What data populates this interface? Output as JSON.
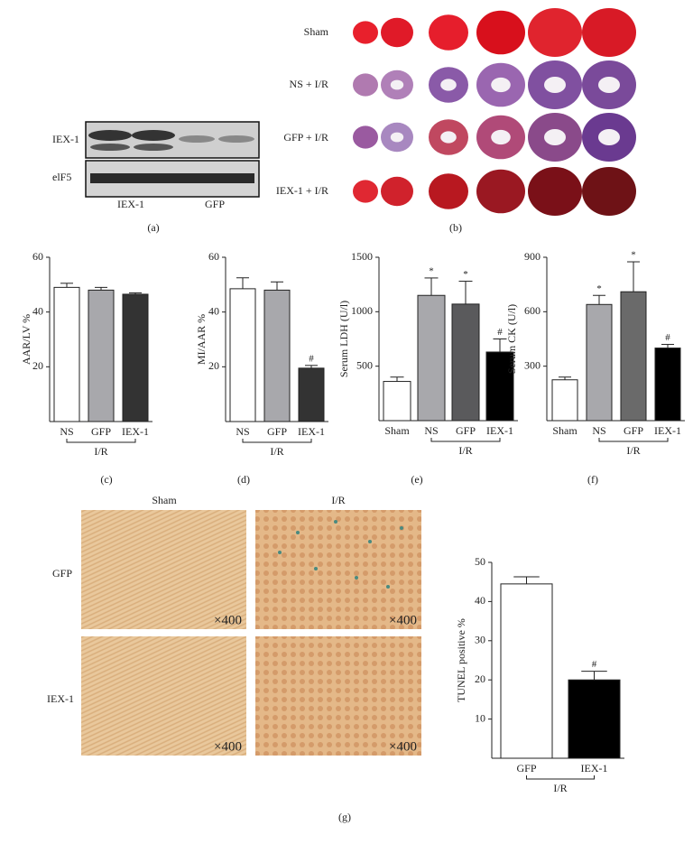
{
  "figure": {
    "blot": {
      "row_labels": [
        "IEX-1",
        "elF5"
      ],
      "lane_labels": [
        "IEX-1",
        "GFP"
      ],
      "panel_label": "(a)"
    },
    "hearts": {
      "row_labels": [
        "Sham",
        "NS + I/R",
        "GFP + I/R",
        "IEX-1 + I/R"
      ],
      "panel_label": "(b)"
    },
    "tunel": {
      "column_labels": [
        "Sham",
        "I/R"
      ],
      "row_labels": [
        "GFP",
        "IEX-1"
      ],
      "magnification": "×400",
      "panel_label": "(g)"
    }
  },
  "chart_data": [
    {
      "type": "bar",
      "ylabel": "AAR/LV %",
      "panel_label": "(c)",
      "categories": [
        "NS",
        "GFP",
        "IEX-1"
      ],
      "category_groups": [
        "I/R",
        "I/R",
        "I/R"
      ],
      "values": [
        49,
        48,
        46.5
      ],
      "errors": [
        1.5,
        1,
        0.5
      ],
      "colors": [
        "#ffffff",
        "#a8a8ac",
        "#333333"
      ],
      "annotations": [
        null,
        null,
        null
      ],
      "ylim": [
        0,
        60
      ],
      "yticks": [
        20,
        40,
        60
      ]
    },
    {
      "type": "bar",
      "ylabel": "MI/AAR %",
      "panel_label": "(d)",
      "categories": [
        "NS",
        "GFP",
        "IEX-1"
      ],
      "category_groups": [
        "I/R",
        "I/R",
        "I/R"
      ],
      "values": [
        48.5,
        48,
        19.5
      ],
      "errors": [
        4,
        3,
        1
      ],
      "colors": [
        "#ffffff",
        "#a8a8ac",
        "#333333"
      ],
      "annotations": [
        null,
        null,
        "#"
      ],
      "ylim": [
        0,
        60
      ],
      "yticks": [
        20,
        40,
        60
      ]
    },
    {
      "type": "bar",
      "ylabel": "Serum LDH (U/l)",
      "panel_label": "(e)",
      "categories": [
        "Sham",
        "NS",
        "GFP",
        "IEX-1"
      ],
      "category_groups": [
        null,
        "I/R",
        "I/R",
        "I/R"
      ],
      "values": [
        360,
        1150,
        1070,
        630
      ],
      "errors": [
        40,
        160,
        210,
        120
      ],
      "colors": [
        "#ffffff",
        "#a8a8ac",
        "#5a5a5c",
        "#000000"
      ],
      "annotations": [
        null,
        "*",
        "*",
        "#"
      ],
      "ylim": [
        0,
        1500
      ],
      "yticks": [
        500,
        1000,
        1500
      ]
    },
    {
      "type": "bar",
      "ylabel": "Serum CK (U/l)",
      "panel_label": "(f)",
      "categories": [
        "Sham",
        "NS",
        "GFP",
        "IEX-1"
      ],
      "category_groups": [
        null,
        "I/R",
        "I/R",
        "I/R"
      ],
      "values": [
        225,
        640,
        710,
        400
      ],
      "errors": [
        15,
        50,
        165,
        20
      ],
      "colors": [
        "#ffffff",
        "#a8a8ac",
        "#6a6a6a",
        "#000000"
      ],
      "annotations": [
        null,
        "*",
        "*",
        "#"
      ],
      "ylim": [
        0,
        900
      ],
      "yticks": [
        300,
        600,
        900
      ]
    },
    {
      "type": "bar",
      "ylabel": "TUNEL positive %",
      "categories": [
        "GFP",
        "IEX-1"
      ],
      "category_groups": [
        "I/R",
        "I/R"
      ],
      "values": [
        44.5,
        20
      ],
      "errors": [
        1.8,
        2.2
      ],
      "colors": [
        "#ffffff",
        "#000000"
      ],
      "annotations": [
        null,
        "#"
      ],
      "ylim": [
        0,
        50
      ],
      "yticks": [
        10,
        20,
        30,
        40,
        50
      ]
    }
  ]
}
